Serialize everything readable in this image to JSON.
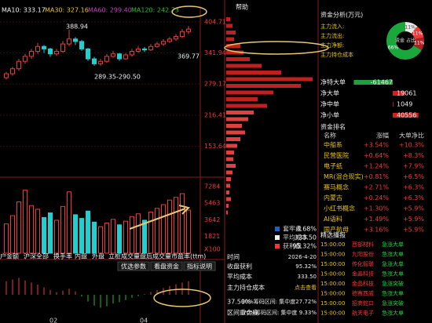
{
  "left": {
    "ma_labels": [
      "MA10: 333.17",
      "MA30: 327.16",
      "MA60: 299.40",
      "MA120: 242.73"
    ],
    "price_ticks": [
      404.71,
      341.94,
      279.17,
      216.41,
      153.64
    ],
    "price_lim": [
      101,
      417
    ],
    "annotations": [
      "388.94",
      "369.77",
      "289.35-290.50"
    ],
    "candles": [
      [
        292,
        304,
        288,
        300
      ],
      [
        300,
        314,
        296,
        310
      ],
      [
        310,
        330,
        306,
        325
      ],
      [
        325,
        340,
        320,
        335
      ],
      [
        335,
        350,
        330,
        345
      ],
      [
        345,
        362,
        340,
        355
      ],
      [
        355,
        358,
        342,
        350
      ],
      [
        350,
        352,
        334,
        340
      ],
      [
        340,
        350,
        336,
        345
      ],
      [
        345,
        366,
        342,
        360
      ],
      [
        360,
        388.94,
        356,
        370
      ],
      [
        370,
        374,
        358,
        365
      ],
      [
        365,
        368,
        346,
        350
      ],
      [
        350,
        352,
        326,
        330
      ],
      [
        330,
        334,
        316,
        320
      ],
      [
        320,
        330,
        316,
        325
      ],
      [
        325,
        340,
        322,
        335
      ],
      [
        335,
        346,
        332,
        340
      ],
      [
        340,
        342,
        326,
        330
      ],
      [
        330,
        342,
        328,
        338
      ],
      [
        338,
        350,
        334,
        345
      ],
      [
        345,
        356,
        342,
        350
      ],
      [
        350,
        354,
        344,
        348
      ],
      [
        348,
        360,
        346,
        355
      ],
      [
        355,
        364,
        352,
        360
      ],
      [
        360,
        369.77,
        356,
        365
      ],
      [
        365,
        374,
        362,
        370
      ],
      [
        370,
        380,
        366,
        375
      ],
      [
        375,
        390,
        372,
        385
      ],
      [
        385,
        396,
        380,
        390
      ]
    ],
    "volume_ticks": [
      7284,
      5463,
      3642,
      1821
    ],
    "volume_unit": "X100",
    "volume_lim": [
      0,
      7700
    ],
    "volumes": [
      3200,
      4100,
      5600,
      6900,
      5200,
      4800,
      3900,
      4400,
      3600,
      5100,
      6700,
      4200,
      3800,
      4600,
      3400,
      2900,
      3300,
      3700,
      3100,
      3500,
      4000,
      4300,
      3600,
      4500,
      4900,
      5300,
      5800,
      6100,
      6500,
      4700
    ],
    "macd_lim": [
      -6,
      6
    ],
    "macd": [
      4,
      4.5,
      5,
      4.2,
      3.6,
      3,
      2.2,
      1.4,
      0.8,
      1.2,
      1.8,
      1,
      -0.5,
      -2,
      -3.2,
      -3.8,
      -3.4,
      -2.6,
      -2.2,
      -1.6,
      -0.9,
      -0.4,
      0.2,
      0.8,
      1.4,
      2,
      2.6,
      3.1,
      3.6,
      4
    ],
    "tabs": [
      "户金额",
      "沪深全部",
      "换手率",
      "内盘",
      "外盘",
      "立桩成交量",
      "盘后成交量",
      "市盈率(ttm)"
    ],
    "buttons": [
      "优选参数",
      "看盘资金",
      "指标说明"
    ],
    "dates": [
      "02",
      "04"
    ]
  },
  "middle": {
    "help": "帮助",
    "chips": [
      5,
      8,
      12,
      10,
      18,
      22,
      30,
      45,
      70,
      110,
      95,
      60,
      40,
      52,
      35,
      28,
      20,
      24,
      18,
      14,
      10,
      9,
      12,
      8,
      6,
      5,
      4,
      6,
      3,
      2
    ],
    "legend": [
      {
        "name": "套牢盘",
        "value": "4.68%"
      },
      {
        "name": "平均成本",
        "value": "333.50"
      },
      {
        "name": "获利盘",
        "value": "95.32%"
      }
    ],
    "rows": [
      [
        "时间",
        "2026-4-20"
      ],
      [
        "收盘获利",
        "95.32%"
      ],
      [
        "平均成本",
        "333.50"
      ],
      [
        "主力持仓成本",
        "点击查看"
      ],
      [
        "37.50%",
        "90%筹码区间: 集中度27.72%"
      ],
      [
        "区间重合度",
        "70%筹码区间: 集中度 9.33%"
      ]
    ]
  },
  "right": {
    "title": "资金分析(万元)",
    "lines": [
      "主力流入:",
      "主力流出:",
      "主力净额:",
      "主力持仓成本"
    ],
    "donut_center": "资金\n占比",
    "donut": [
      {
        "value": 11,
        "label": "11%",
        "color": "#e8e8e8"
      },
      {
        "value": 11,
        "label": "11%",
        "color": "#f03838"
      },
      {
        "value": 11,
        "label": "11%",
        "color": "#b02020"
      },
      {
        "value": 66,
        "label": "66%",
        "color": "#1aa83c"
      }
    ],
    "flows": [
      {
        "name": "净特大单",
        "value": -61467
      },
      {
        "name": "净大单",
        "value": 19061
      },
      {
        "name": "净中单",
        "value": 1049
      },
      {
        "name": "净小单",
        "value": 40556
      }
    ],
    "flow_lim": [
      0,
      62000
    ],
    "rank_title": "资金排名",
    "rank_header": [
      "名称",
      "涨幅",
      "大单净比"
    ],
    "rank": [
      [
        "中船系",
        "+3.54%",
        "+10.3%"
      ],
      [
        "民营医院",
        "+0.64%",
        "+8.3%"
      ],
      [
        "电子纸",
        "+1.24%",
        "+7.9%"
      ],
      [
        "MR(混合现实)",
        "+0.81%",
        "+6.5%"
      ],
      [
        "赛马概念",
        "+2.71%",
        "+6.3%"
      ],
      [
        "内蒙古",
        "+0.24%",
        "+6.3%"
      ],
      [
        "小红书概念",
        "+1.30%",
        "+5.9%"
      ],
      [
        "AI语料",
        "+1.49%",
        "+5.9%"
      ],
      [
        "国产航母",
        "+3.16%",
        "+5.9%"
      ]
    ],
    "news_title": "精选播报",
    "news": [
      [
        "15:00:00",
        "西部材料",
        "急涨大单"
      ],
      [
        "15:00:00",
        "九阳股份",
        "急涨大单"
      ],
      [
        "15:00:00",
        "传化智联",
        "急涨大单"
      ],
      [
        "15:00:00",
        "金晶科技",
        "急涨大单"
      ],
      [
        "15:00:00",
        "金晶科技",
        "急涨突破"
      ],
      [
        "15:00:00",
        "德赛西威",
        "急涨大单"
      ],
      [
        "15:00:00",
        "招商蛇口",
        "急涨突破"
      ],
      [
        "15:00:00",
        "航天电子",
        "急涨大单"
      ]
    ]
  }
}
